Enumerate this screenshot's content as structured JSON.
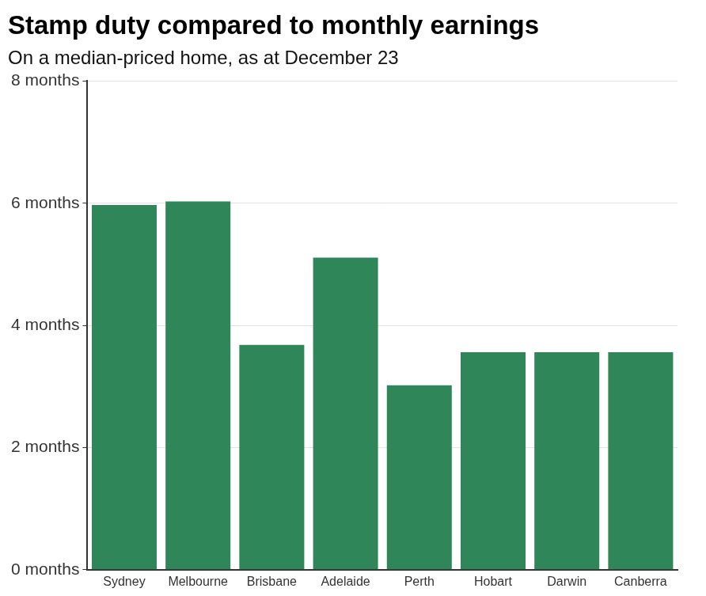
{
  "chart_data": {
    "type": "bar",
    "title": "Stamp duty compared to monthly earnings",
    "subtitle": "On a median-priced home, as at December 23",
    "categories": [
      "Sydney",
      "Melbourne",
      "Brisbane",
      "Adelaide",
      "Perth",
      "Hobart",
      "Darwin",
      "Canberra"
    ],
    "values": [
      5.97,
      6.03,
      3.68,
      5.11,
      3.02,
      3.56,
      3.56,
      3.56
    ],
    "color": "#2e8659",
    "ylim": [
      0,
      8
    ],
    "yticks": [
      {
        "value": 0,
        "label": "0 months"
      },
      {
        "value": 2,
        "label": "2 months"
      },
      {
        "value": 4,
        "label": "4 months"
      },
      {
        "value": 6,
        "label": "6 months"
      },
      {
        "value": 8,
        "label": "8 months"
      }
    ],
    "grid": true
  }
}
